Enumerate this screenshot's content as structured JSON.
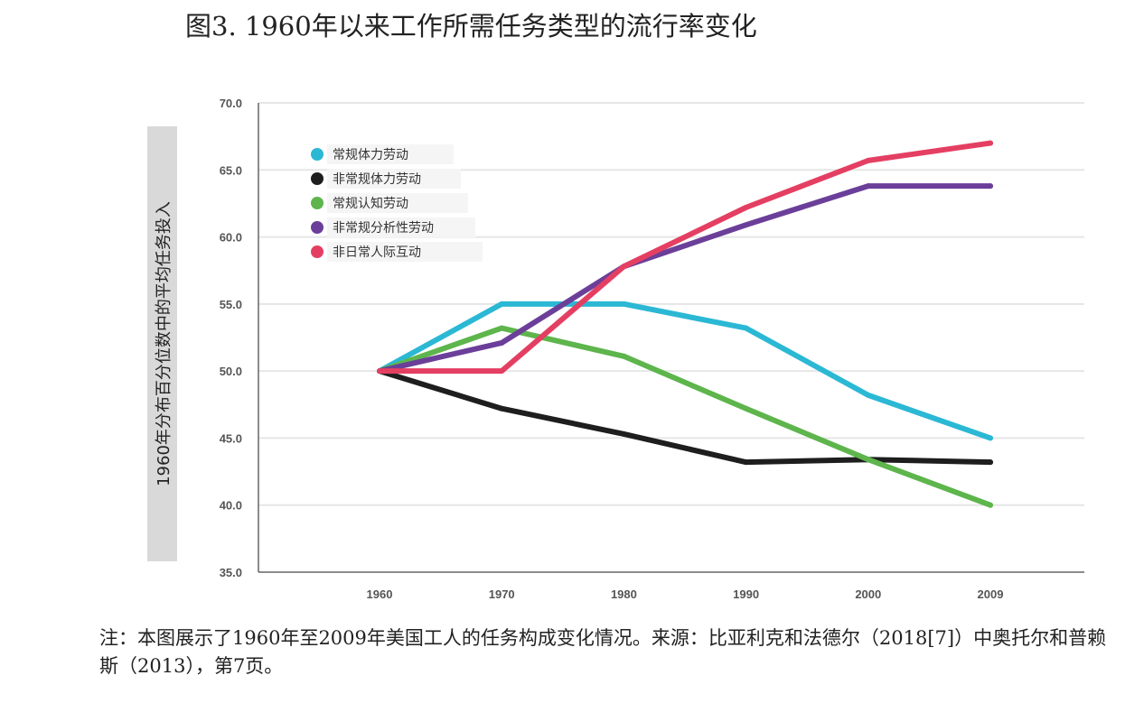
{
  "title": "图3. 1960年以来工作所需任务类型的流行率变化",
  "note": "注：本图展示了1960年至2009年美国工人的任务构成变化情况。来源：比亚利克和法德尔（2018[7]）中奥托尔和普赖斯（2013），第7页。",
  "chart_data": {
    "type": "line",
    "title": "图3. 1960年以来工作所需任务类型的流行率变化",
    "xlabel": "",
    "ylabel": "1960年分布百分位数中的平均任务投入",
    "categories": [
      "1960",
      "1970",
      "1980",
      "1990",
      "2000",
      "2009"
    ],
    "ylim": [
      35.0,
      70.0
    ],
    "yticks": [
      "35.0",
      "40.0",
      "45.0",
      "50.0",
      "55.0",
      "60.0",
      "65.0",
      "70.0"
    ],
    "grid": true,
    "legend_position": "top-left",
    "series": [
      {
        "name": "常规体力劳动",
        "color": "#2bb8d4",
        "values": [
          50.0,
          55.0,
          55.0,
          53.2,
          48.2,
          45.0
        ]
      },
      {
        "name": "非常规体力劳动",
        "color": "#1e1e1e",
        "values": [
          50.0,
          47.2,
          45.3,
          43.2,
          43.4,
          43.2
        ]
      },
      {
        "name": "常规认知劳动",
        "color": "#5db54c",
        "values": [
          50.0,
          53.2,
          51.1,
          47.2,
          43.4,
          40.0
        ]
      },
      {
        "name": "非常规分析性劳动",
        "color": "#6b3f99",
        "values": [
          50.0,
          52.1,
          57.8,
          60.9,
          63.8,
          63.8
        ]
      },
      {
        "name": "非日常人际互动",
        "color": "#e43f62",
        "values": [
          50.0,
          50.0,
          57.8,
          62.2,
          65.7,
          67.0
        ]
      }
    ]
  }
}
